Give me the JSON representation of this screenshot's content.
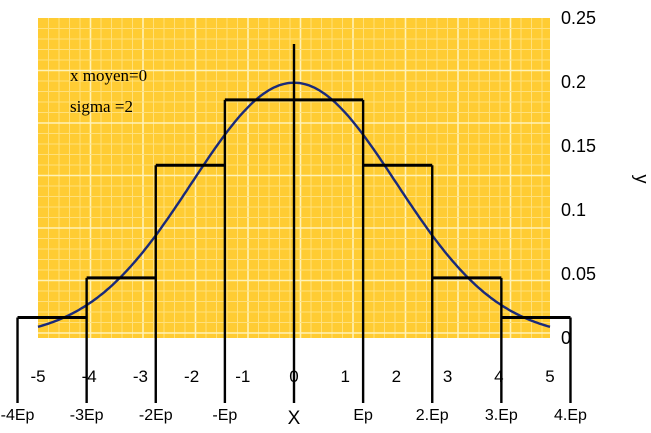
{
  "chart_data": {
    "type": "line",
    "title": "",
    "xlabel": "X",
    "ylabel": "y",
    "xlim": [
      -5,
      5
    ],
    "ylim": [
      0,
      0.25
    ],
    "grid": true,
    "colors": {
      "plot_background": "#FFCC33",
      "grid_major": "#FFF2B8",
      "grid_minor": "#FFE07A",
      "curve": "#1a2a7a",
      "steps": "#000000",
      "axes": "#000000"
    },
    "x_ticks": [
      "-5",
      "-4",
      "-3",
      "-2",
      "-1",
      "0",
      "1",
      "2",
      "3",
      "4",
      "5"
    ],
    "y_ticks": [
      "0",
      "0.05",
      "0.1",
      "0.15",
      "0.2",
      "0.25"
    ],
    "ep_labels": [
      {
        "label": "-4Ep",
        "x": -5.4
      },
      {
        "label": "-3Ep",
        "x": -4.05
      },
      {
        "label": "-2Ep",
        "x": -2.7
      },
      {
        "label": "-Ep",
        "x": -1.35
      },
      {
        "label": "Ep",
        "x": 1.35
      },
      {
        "label": "2.Ep",
        "x": 2.7
      },
      {
        "label": "3.Ep",
        "x": 4.05
      },
      {
        "label": "4.Ep",
        "x": 5.4
      }
    ],
    "annotations": [
      "x moyen=0",
      "sigma =2"
    ],
    "series": [
      {
        "kind": "curve",
        "mean": 0,
        "sigma": 2,
        "x_start": -5,
        "x_end": 5,
        "points": [
          {
            "x": -5,
            "y": 0.0088
          },
          {
            "x": -4,
            "y": 0.027
          },
          {
            "x": -3,
            "y": 0.0648
          },
          {
            "x": -2,
            "y": 0.121
          },
          {
            "x": -1,
            "y": 0.176
          },
          {
            "x": 0,
            "y": 0.1995
          },
          {
            "x": 1,
            "y": 0.176
          },
          {
            "x": 2,
            "y": 0.121
          },
          {
            "x": 3,
            "y": 0.0648
          },
          {
            "x": 4,
            "y": 0.027
          },
          {
            "x": 5,
            "y": 0.0088
          }
        ]
      },
      {
        "kind": "histogram",
        "bins": [
          {
            "x0": -5.4,
            "x1": -4.05,
            "y": 0.016
          },
          {
            "x0": -4.05,
            "x1": -2.7,
            "y": 0.047
          },
          {
            "x0": -2.7,
            "x1": -1.35,
            "y": 0.135
          },
          {
            "x0": -1.35,
            "x1": 1.35,
            "y": 0.186
          },
          {
            "x0": 1.35,
            "x1": 2.7,
            "y": 0.135
          },
          {
            "x0": 2.7,
            "x1": 4.05,
            "y": 0.047
          },
          {
            "x0": 4.05,
            "x1": 5.4,
            "y": 0.016
          }
        ]
      }
    ]
  }
}
